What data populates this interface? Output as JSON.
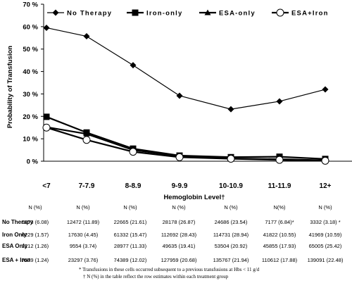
{
  "chart_data": {
    "type": "line",
    "categories": [
      "<7",
      "7-7.9",
      "8-8.9",
      "9-9.9",
      "10-10.9",
      "11-11.9",
      "12+"
    ],
    "xlabel": "Hemoglobin Level†",
    "ylabel": "Probability of Transfusion",
    "ylim": [
      0,
      70
    ],
    "yticks": [
      "0 %",
      "10 %",
      "20 %",
      "30 %",
      "40 %",
      "50 %",
      "60 %",
      "70 %"
    ],
    "legend_position": "top",
    "series": [
      {
        "name": "No Therapy",
        "marker": "diamond",
        "values": [
          59.5,
          55.7,
          42.8,
          29.2,
          23.2,
          26.7,
          32.0
        ]
      },
      {
        "name": "Iron-only",
        "marker": "square",
        "values": [
          19.8,
          12.8,
          5.6,
          2.5,
          1.8,
          2.0,
          1.0
        ]
      },
      {
        "name": "ESA-only",
        "marker": "triangle",
        "values": [
          15.2,
          12.2,
          5.0,
          2.3,
          1.2,
          0.9,
          0.4
        ]
      },
      {
        "name": "ESA+Iron",
        "marker": "circle-open",
        "values": [
          15.0,
          9.5,
          4.2,
          1.8,
          1.1,
          0.6,
          0.2
        ]
      }
    ],
    "table": {
      "header": [
        "N (%)",
        "N (%)",
        "N (%)",
        "N (%)",
        "N (%)",
        "N(%)",
        "N (%)"
      ],
      "rows": [
        {
          "label": "No Therapy",
          "cells": [
            "6373 (6.08)",
            "12472 (11.89)",
            "22665 (21.61)",
            "28178 (26.87)",
            "24686 (23.54)",
            "7177 (6.84)*",
            "3332 (3.18) *"
          ]
        },
        {
          "label": "Iron Only",
          "cells": [
            "6229 (1.57)",
            "17630 (4.45)",
            "61332 (15.47)",
            "112692 (28.43)",
            "114731 (28.94)",
            "41822 (10.55)",
            "41969 (10.59)"
          ]
        },
        {
          "label": "ESA Only",
          "cells": [
            "3212 (1.26)",
            "9554 (3.74)",
            "28977 (11.33)",
            "49635 (19.41)",
            "53504 (20.92)",
            "45855 (17.93)",
            "65005 (25.42)"
          ]
        },
        {
          "label": "ESA + Iron",
          "cells": [
            "7679 (1.24)",
            "23297 (3.76)",
            "74389 (12.02)",
            "127959 (20.68)",
            "135767 (21.94)",
            "110612 (17.88)",
            "139091 (22.48)"
          ]
        }
      ]
    },
    "footnotes": [
      "* Transfusions in these cells occurred subsequent to a previous transfusions at Hbs < 11 g/d",
      "† N (%) in the table reflect the row estimates within each treatment group"
    ]
  }
}
